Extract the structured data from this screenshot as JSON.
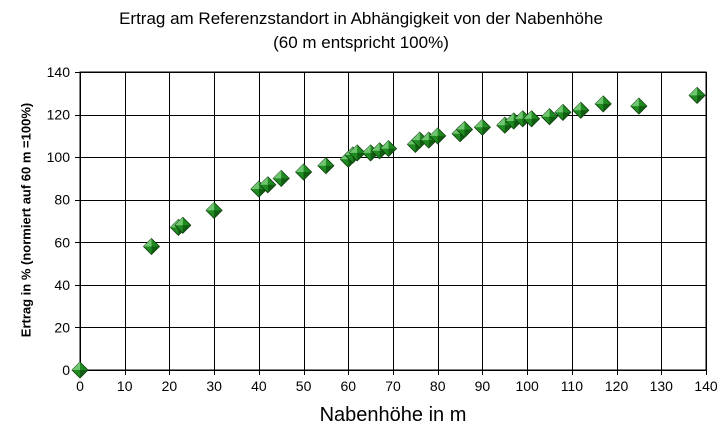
{
  "chart_data": {
    "type": "scatter",
    "title": "Ertrag am Referenzstandort in Abhängigkeit von der Nabenhöhe",
    "subtitle": "(60 m entspricht 100%)",
    "xlabel": "Nabenhöhe in m",
    "ylabel": "Ertrag in % (normiert auf 60 m =100%)",
    "xlim": [
      0,
      140
    ],
    "ylim": [
      0,
      140
    ],
    "xticks": [
      0,
      10,
      20,
      30,
      40,
      50,
      60,
      70,
      80,
      90,
      100,
      110,
      120,
      130,
      140
    ],
    "yticks": [
      0,
      20,
      40,
      60,
      80,
      100,
      120,
      140
    ],
    "grid": true,
    "legend": "none",
    "marker_color": "#1f8a1f",
    "points": [
      [
        0,
        0
      ],
      [
        16,
        58
      ],
      [
        22,
        67
      ],
      [
        23,
        68
      ],
      [
        30,
        75
      ],
      [
        40,
        85
      ],
      [
        42,
        87
      ],
      [
        45,
        90
      ],
      [
        50,
        93
      ],
      [
        55,
        96
      ],
      [
        60,
        99
      ],
      [
        61,
        101
      ],
      [
        62,
        102
      ],
      [
        65,
        102
      ],
      [
        67,
        103
      ],
      [
        69,
        104
      ],
      [
        75,
        106
      ],
      [
        76,
        108
      ],
      [
        78,
        108
      ],
      [
        80,
        110
      ],
      [
        85,
        111
      ],
      [
        86,
        113
      ],
      [
        90,
        114
      ],
      [
        95,
        115
      ],
      [
        97,
        117
      ],
      [
        99,
        118
      ],
      [
        101,
        118
      ],
      [
        105,
        119
      ],
      [
        108,
        121
      ],
      [
        112,
        122
      ],
      [
        117,
        125
      ],
      [
        125,
        124
      ],
      [
        138,
        129
      ]
    ]
  }
}
